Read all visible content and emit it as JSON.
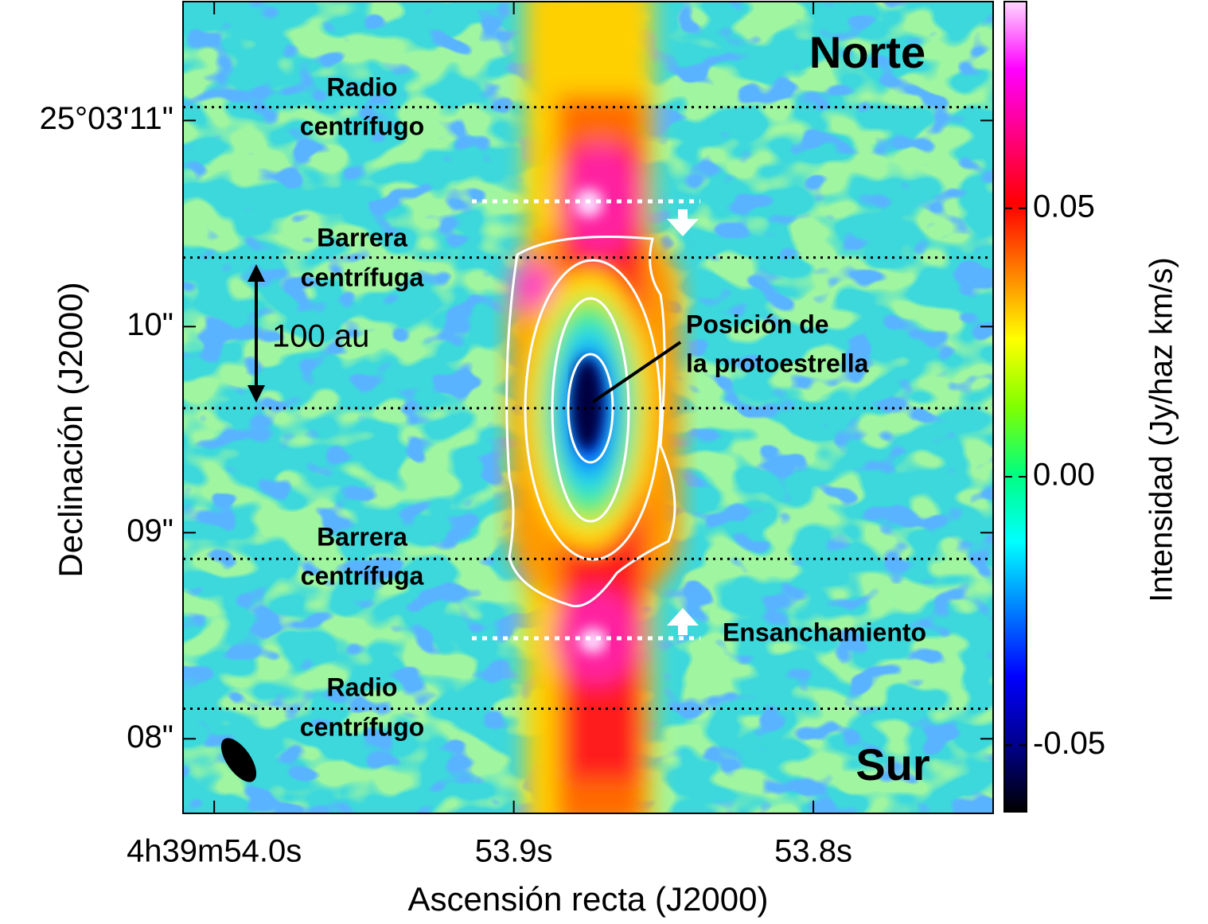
{
  "chart_data": {
    "type": "image",
    "xlabel": "Ascensión recta (J2000)",
    "ylabel": "Declinación (J2000)",
    "xlim": [
      54.0104,
      53.74
    ],
    "xticks": [
      {
        "value": 54.0,
        "label": "4h39m54.0s"
      },
      {
        "value": 53.9,
        "label": "53.9s"
      },
      {
        "value": 53.8,
        "label": "53.8s"
      }
    ],
    "ylim": [
      7.638,
      11.577
    ],
    "yticks": [
      {
        "value": 11,
        "label": "25°03'11\""
      },
      {
        "value": 10,
        "label": "10\""
      },
      {
        "value": 9,
        "label": "09\""
      },
      {
        "value": 8,
        "label": "08\""
      }
    ],
    "reference_lines": [
      11.065,
      10.335,
      9.604,
      8.873,
      8.146
    ],
    "colorbar": {
      "label": "Intensidad (Jy/haz km/s)",
      "clim": [
        -0.0624,
        0.0885
      ],
      "ticks": [
        0.05,
        {
          "value": 0,
          "label": "0.00"
        },
        -0.05
      ],
      "colormap": [
        "#000000",
        "#00008c",
        "#0000ff",
        "#0080ff",
        "#00ffff",
        "#00ff80",
        "#80ff00",
        "#ffff00",
        "#ff8000",
        "#ff0000",
        "#ff0080",
        "#ff00ff",
        "#ffd8ff"
      ]
    },
    "annotations": [
      [
        "Norte"
      ],
      [
        "Sur"
      ],
      [
        "Radio",
        "centrífugo"
      ],
      [
        "Barrera",
        "centrífuga"
      ],
      [
        "Barrera",
        "centrífuga"
      ],
      [
        "Radio",
        "centrífugo"
      ],
      [
        "100 au"
      ],
      [
        "Posición de",
        "la protoestrella"
      ],
      [
        "Ensanchamiento"
      ]
    ]
  }
}
